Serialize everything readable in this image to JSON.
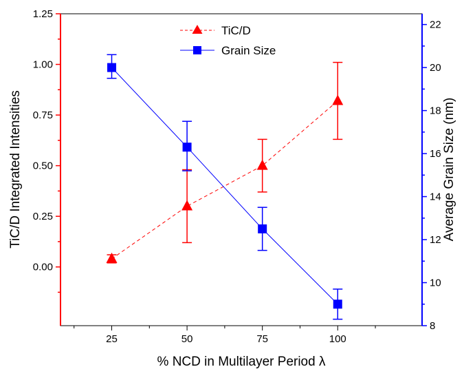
{
  "chart_data": {
    "type": "line",
    "xlabel": "% NCD in Multilayer Period λ",
    "ylabel_left": "TiC/D Integrated Intensities",
    "ylabel_right": "Average Grain Size (nm)",
    "xlim": [
      8,
      128
    ],
    "ylim_left": [
      -0.29,
      1.25
    ],
    "ylim_right": [
      8,
      22.5
    ],
    "x_ticks": [
      25,
      50,
      75,
      100
    ],
    "y_ticks_left": [
      "0.00",
      "0.25",
      "0.50",
      "0.75",
      "1.00",
      "1.25"
    ],
    "y_ticks_right": [
      "8",
      "10",
      "12",
      "14",
      "16",
      "18",
      "20",
      "22"
    ],
    "legend_position": "top-center",
    "grid": false,
    "series": [
      {
        "name": "TiC/D",
        "axis": "left",
        "color": "#ff0000",
        "line_style": "dashed",
        "marker": "triangle",
        "x": [
          25,
          50,
          75,
          100
        ],
        "y": [
          0.04,
          0.3,
          0.5,
          0.82
        ],
        "err_low": [
          0.02,
          0.12,
          0.37,
          0.63
        ],
        "err_high": [
          0.06,
          0.48,
          0.63,
          1.01
        ]
      },
      {
        "name": "Grain Size",
        "axis": "right",
        "color": "#0000ff",
        "line_style": "solid",
        "marker": "square",
        "x": [
          25,
          50,
          75,
          100
        ],
        "y": [
          20.0,
          16.3,
          12.5,
          9.0
        ],
        "err_low": [
          19.5,
          15.2,
          11.5,
          8.3
        ],
        "err_high": [
          20.6,
          17.5,
          13.5,
          9.7
        ]
      }
    ]
  }
}
